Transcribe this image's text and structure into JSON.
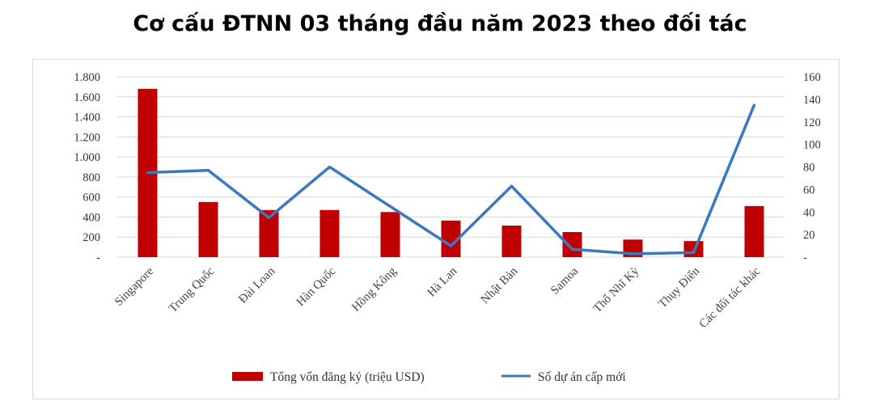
{
  "title": "Cơ cấu ĐTNN 03 tháng đầu năm 2023 theo đối tác",
  "chart_data": {
    "type": "bar",
    "categories": [
      "Singapore",
      "Trung Quốc",
      "Đài Loan",
      "Hàn Quốc",
      "Hồng Kông",
      "Hà Lan",
      "Nhật Bản",
      "Samoa",
      "Thổ Nhĩ Kỳ",
      "Thụy Điển",
      "Các đối tác khác"
    ],
    "series": [
      {
        "name": "Tổng vốn đăng ký (triệu USD)",
        "type": "bar",
        "axis": "left",
        "color": "#c00000",
        "values": [
          1680,
          550,
          470,
          470,
          450,
          365,
          315,
          250,
          175,
          160,
          510
        ]
      },
      {
        "name": "Số dự án cấp mới",
        "type": "line",
        "axis": "right",
        "color": "#3a78c2",
        "values": [
          75,
          77,
          35,
          80,
          45,
          10,
          63,
          7,
          3,
          4,
          135
        ]
      }
    ],
    "y_left": {
      "min": 0,
      "max": 1800,
      "ticks": [
        "-",
        "200",
        "400",
        "600",
        "800",
        "1.000",
        "1.200",
        "1.400",
        "1.600",
        "1.800"
      ]
    },
    "y_right": {
      "min": 0,
      "max": 160,
      "ticks": [
        "-",
        "20",
        "40",
        "60",
        "80",
        "100",
        "120",
        "140",
        "160"
      ]
    },
    "grid": true,
    "legend_position": "bottom"
  }
}
